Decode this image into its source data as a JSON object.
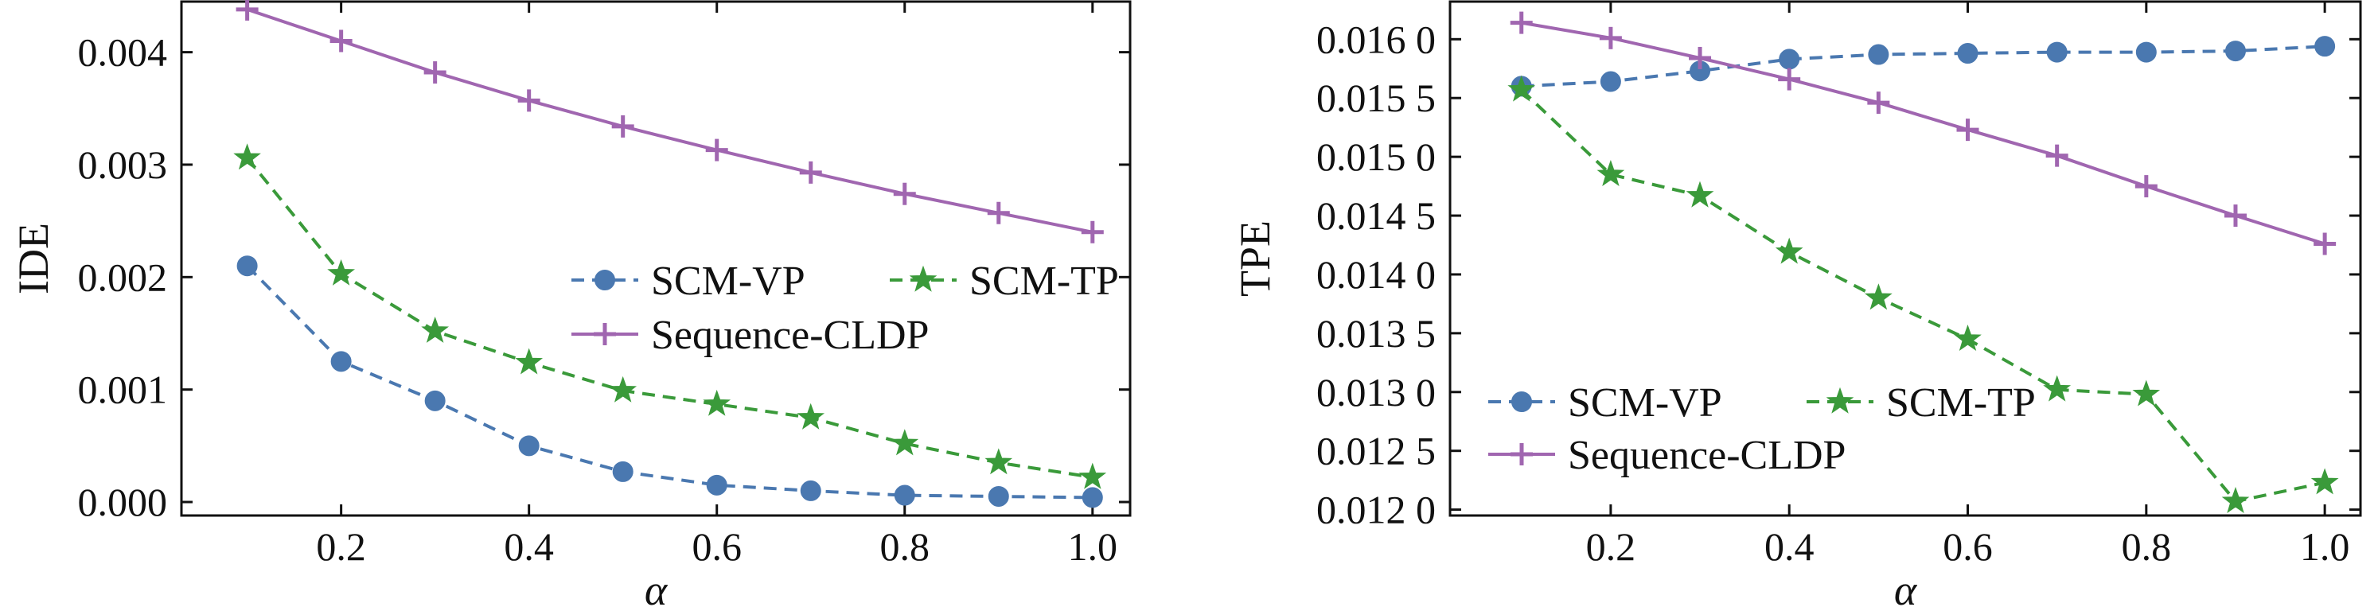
{
  "chart_data": [
    {
      "type": "line",
      "xlabel": "α",
      "ylabel": "IDE",
      "x": [
        0.1,
        0.2,
        0.3,
        0.4,
        0.5,
        0.6,
        0.7,
        0.8,
        0.9,
        1.0
      ],
      "xlim": [
        0.03,
        1.04
      ],
      "ylim": [
        -0.00012,
        0.00445
      ],
      "xticks": [
        0.2,
        0.4,
        0.6,
        0.8,
        1.0
      ],
      "xtick_labels": [
        "0.2",
        "0.4",
        "0.6",
        "0.8",
        "1.0"
      ],
      "yticks": [
        0.0,
        0.001,
        0.002,
        0.003,
        0.004
      ],
      "ytick_labels": [
        "0.000",
        "0.001",
        "0.002",
        "0.003",
        "0.004"
      ],
      "legend_placement": "center-right",
      "legend_columns": 2,
      "grid": false,
      "series": [
        {
          "name": "SCM-VP",
          "color": "#4a78b0",
          "marker": "circle",
          "linestyle": "dashed",
          "values": [
            0.0021,
            0.00125,
            0.0009,
            0.0005,
            0.00027,
            0.00015,
            0.0001,
            6e-05,
            5e-05,
            4e-05
          ]
        },
        {
          "name": "SCM-TP",
          "color": "#3a9a3a",
          "marker": "star",
          "linestyle": "dashed",
          "values": [
            0.00306,
            0.00203,
            0.00152,
            0.00124,
            0.00099,
            0.00087,
            0.00075,
            0.00052,
            0.00035,
            0.00022
          ]
        },
        {
          "name": "Sequence-CLDP",
          "color": "#a066b0",
          "marker": "plus",
          "linestyle": "solid",
          "values": [
            0.00438,
            0.0041,
            0.00382,
            0.00357,
            0.00334,
            0.00313,
            0.00293,
            0.00274,
            0.00257,
            0.0024
          ]
        }
      ]
    },
    {
      "type": "line",
      "xlabel": "α",
      "ylabel": "TPE",
      "x": [
        0.1,
        0.2,
        0.3,
        0.4,
        0.5,
        0.6,
        0.7,
        0.8,
        0.9,
        1.0
      ],
      "xlim": [
        0.02,
        1.04
      ],
      "ylim": [
        0.01195,
        0.01632
      ],
      "xticks": [
        0.2,
        0.4,
        0.6,
        0.8,
        1.0
      ],
      "xtick_labels": [
        "0.2",
        "0.4",
        "0.6",
        "0.8",
        "1.0"
      ],
      "yticks": [
        0.012,
        0.0125,
        0.013,
        0.0135,
        0.014,
        0.0145,
        0.015,
        0.0155,
        0.016
      ],
      "ytick_labels": [
        "0.012 0",
        "0.012 5",
        "0.013 0",
        "0.013 5",
        "0.014 0",
        "0.014 5",
        "0.015 0",
        "0.015 5",
        "0.016 0"
      ],
      "legend_placement": "lower-left",
      "legend_columns": 2,
      "grid": false,
      "series": [
        {
          "name": "SCM-VP",
          "color": "#4a78b0",
          "marker": "circle",
          "linestyle": "dashed",
          "values": [
            0.0156,
            0.01564,
            0.01573,
            0.01583,
            0.01587,
            0.01588,
            0.01589,
            0.01589,
            0.0159,
            0.01594
          ]
        },
        {
          "name": "SCM-TP",
          "color": "#3a9a3a",
          "marker": "star",
          "linestyle": "dashed",
          "values": [
            0.01557,
            0.01485,
            0.01467,
            0.01419,
            0.0138,
            0.01345,
            0.01302,
            0.01298,
            0.01207,
            0.01223
          ]
        },
        {
          "name": "Sequence-CLDP",
          "color": "#a066b0",
          "marker": "plus",
          "linestyle": "solid",
          "values": [
            0.01614,
            0.01601,
            0.01584,
            0.01566,
            0.01546,
            0.01523,
            0.01501,
            0.01475,
            0.0145,
            0.01426
          ]
        }
      ]
    }
  ]
}
